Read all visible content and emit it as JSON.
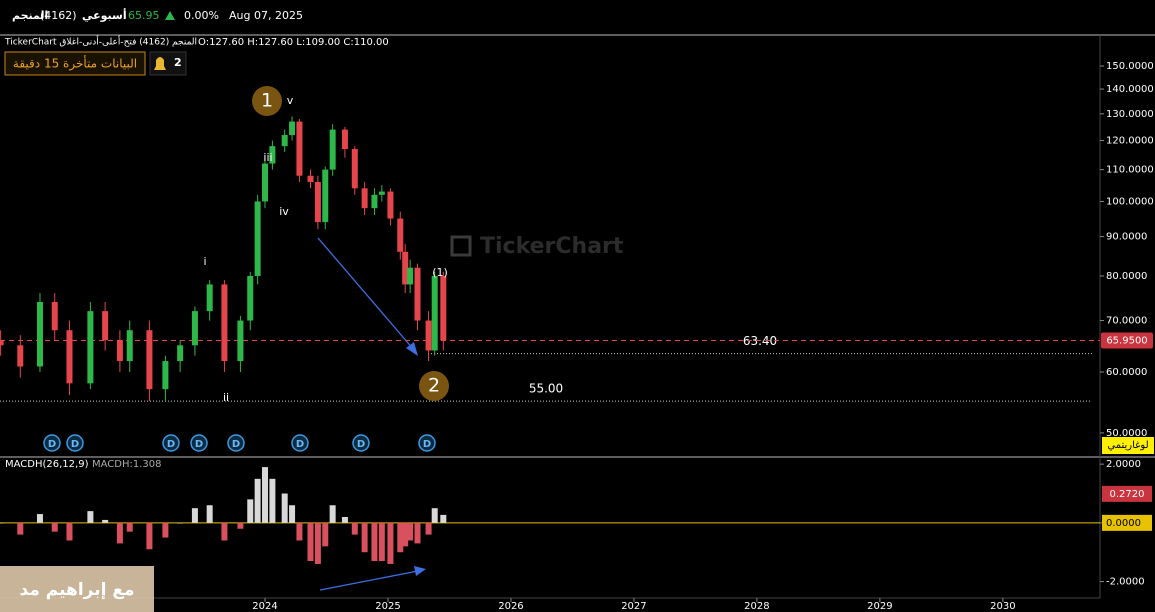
{
  "header": {
    "symbol": "المنجم",
    "code": "(4162)",
    "period": "أسبوعي",
    "price": 65.95,
    "change": "0.00%",
    "date": "Aug 07, 2025",
    "source": "TickerChart المنجم (4162) فتح-أعلى-أدنى-اغلاق",
    "ohlc": "O:127.60 H:127.60 L:109.00 C:110.00",
    "delay_badge": "البيانات متأخرة 15 دقيقة",
    "alerts": "2",
    "watermark": "TickerChart",
    "overlay": "مع إبراهيم مد"
  },
  "chart_data": [
    {
      "type": "candlestick",
      "log_scale": true,
      "up_color": "#2fb84a",
      "down_color": "#e5464b",
      "x": [
        2021.85,
        2022.01,
        2022.17,
        2022.29,
        2022.41,
        2022.58,
        2022.7,
        2022.82,
        2022.9,
        2023.06,
        2023.19,
        2023.31,
        2023.43,
        2023.55,
        2023.67,
        2023.8,
        2023.88,
        2023.94,
        2024.0,
        2024.06,
        2024.16,
        2024.22,
        2024.28,
        2024.37,
        2024.43,
        2024.49,
        2024.55,
        2024.65,
        2024.73,
        2024.81,
        2024.89,
        2024.95,
        2025.02,
        2025.1,
        2025.14,
        2025.18,
        2025.24,
        2025.33,
        2025.38,
        2025.45
      ],
      "open": [
        66,
        65,
        61,
        74,
        68,
        58,
        72,
        66,
        62,
        68,
        57,
        62,
        65,
        72,
        78,
        62,
        70,
        80,
        100,
        112,
        118,
        122,
        127,
        108,
        106,
        94,
        110,
        124,
        117,
        104,
        98,
        102,
        103,
        95,
        86,
        78,
        82,
        70,
        64,
        80
      ],
      "high": [
        68,
        67,
        76,
        76,
        70,
        74,
        74,
        68,
        70,
        70,
        63,
        66,
        73,
        79,
        79,
        71,
        81,
        102,
        114,
        120,
        124,
        129,
        128,
        110,
        108,
        111,
        126,
        125,
        118,
        106,
        104,
        105,
        104,
        97,
        88,
        84,
        83,
        72,
        81,
        81
      ],
      "low": [
        63,
        59,
        60,
        66,
        56,
        57,
        64,
        60,
        60,
        55,
        55,
        60,
        63,
        70,
        60,
        60,
        68,
        78,
        98,
        110,
        116,
        120,
        106,
        104,
        92,
        92,
        108,
        114,
        102,
        96,
        96,
        100,
        93,
        84,
        76,
        76,
        68,
        62,
        63,
        64
      ],
      "close": [
        65,
        61,
        74,
        68,
        58,
        72,
        66,
        62,
        68,
        57,
        62,
        65,
        72,
        78,
        62,
        70,
        80,
        100,
        112,
        118,
        122,
        127,
        108,
        106,
        94,
        110,
        124,
        117,
        104,
        98,
        102,
        103,
        95,
        86,
        78,
        82,
        70,
        64,
        80,
        65.95
      ],
      "last_label": "65.9500",
      "levels": [
        {
          "value": 63.4,
          "label": "63.40"
        },
        {
          "value": 55,
          "label": "55.00"
        }
      ],
      "wave_labels": [
        "1",
        "v",
        "iii",
        "iv",
        "i",
        "ii",
        "(1)",
        "2"
      ],
      "dividend_markers": [
        "D",
        "D",
        "D",
        "D",
        "D",
        "D",
        "D",
        "D"
      ],
      "scale_label": "لوغاريتمي",
      "xlim": [
        2021.845,
        2030.79
      ],
      "ylim": [
        46.8,
        164.6
      ],
      "yticks": [
        {
          "value": 50,
          "label": "50.0000"
        },
        {
          "value": 60,
          "label": "60.0000"
        },
        {
          "value": 70,
          "label": "70.0000"
        },
        {
          "value": 80,
          "label": "80.0000"
        },
        {
          "value": 90,
          "label": "90.0000"
        },
        {
          "value": 100,
          "label": "100.0000"
        },
        {
          "value": 110,
          "label": "110.0000"
        },
        {
          "value": 120,
          "label": "120.0000"
        },
        {
          "value": 130,
          "label": "130.0000"
        },
        {
          "value": 140,
          "label": "140.0000"
        },
        {
          "value": 150,
          "label": "150.0000"
        }
      ]
    },
    {
      "type": "histogram",
      "title": "MACDH(26,12,9)",
      "current": "MACDH:1.308",
      "pos_color": "#d8d8d8",
      "neg_color": "#d9505e",
      "zero_color": "#e6c200",
      "x": [
        2021.85,
        2022.01,
        2022.17,
        2022.29,
        2022.41,
        2022.58,
        2022.7,
        2022.82,
        2022.9,
        2023.06,
        2023.19,
        2023.31,
        2023.43,
        2023.55,
        2023.67,
        2023.8,
        2023.88,
        2023.94,
        2024.0,
        2024.06,
        2024.16,
        2024.22,
        2024.28,
        2024.37,
        2024.43,
        2024.49,
        2024.55,
        2024.65,
        2024.73,
        2024.81,
        2024.89,
        2024.95,
        2025.02,
        2025.1,
        2025.14,
        2025.18,
        2025.24,
        2025.33,
        2025.38,
        2025.45
      ],
      "values": [
        0.0,
        -0.4,
        0.3,
        -0.3,
        -0.6,
        0.4,
        0.1,
        -0.7,
        -0.3,
        -0.9,
        -0.5,
        0.0,
        0.5,
        0.6,
        -0.6,
        -0.2,
        0.8,
        1.5,
        1.9,
        1.5,
        1.0,
        0.6,
        -0.6,
        -1.3,
        -1.4,
        -0.8,
        0.6,
        0.2,
        -0.4,
        -1.0,
        -1.3,
        -1.3,
        -1.4,
        -1.0,
        -0.8,
        -0.6,
        -0.7,
        -0.4,
        0.5,
        0.272
      ],
      "last_label": "0.2720",
      "xlim": [
        2021.845,
        2030.79
      ],
      "xticks": [
        2024,
        2025,
        2026,
        2027,
        2028,
        2029,
        2030
      ],
      "ylim": [
        -2.56,
        2.21
      ],
      "yticks": [
        {
          "value": 2,
          "label": "2.0000"
        },
        {
          "value": 0,
          "label": "0.0000"
        },
        {
          "value": -2,
          "label": "-2.0000"
        }
      ]
    }
  ]
}
